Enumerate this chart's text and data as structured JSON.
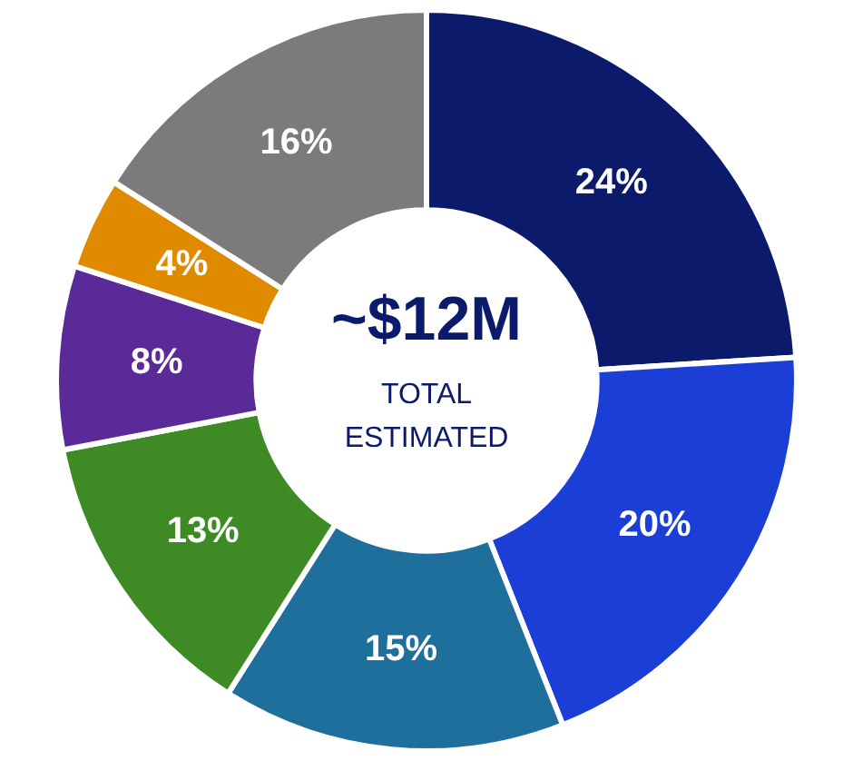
{
  "chart_data": {
    "type": "donut",
    "categories": [
      null,
      null,
      null,
      null,
      null,
      null,
      null
    ],
    "values": [
      24,
      20,
      15,
      13,
      8,
      4,
      16
    ],
    "colors": [
      "#0b1a6b",
      "#1b3fd6",
      "#1f6f9c",
      "#3e8b25",
      "#5b2a99",
      "#e08a00",
      "#7b7b7b"
    ],
    "value_labels": [
      "24%",
      "20%",
      "15%",
      "13%",
      "8%",
      "4%",
      "16%"
    ],
    "annotations": [
      "~$12M",
      "TOTAL",
      "ESTIMATED"
    ]
  }
}
